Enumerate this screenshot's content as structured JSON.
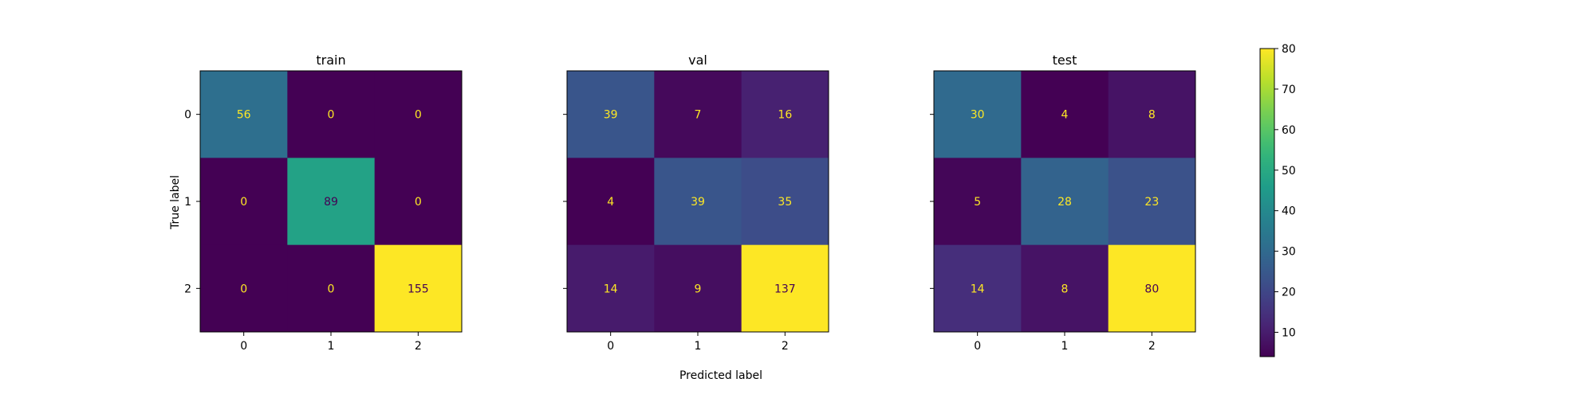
{
  "figure": {
    "xlabel": "Predicted label",
    "ylabel": "True label"
  },
  "colorbar": {
    "min": 4,
    "max": 80,
    "ticks": [
      10,
      20,
      30,
      40,
      50,
      60,
      70,
      80
    ]
  },
  "chart_data": [
    {
      "type": "heatmap",
      "title": "train",
      "x_tick_labels": [
        "0",
        "1",
        "2"
      ],
      "y_tick_labels": [
        "0",
        "1",
        "2"
      ],
      "values": [
        [
          56,
          0,
          0
        ],
        [
          0,
          89,
          0
        ],
        [
          0,
          0,
          155
        ]
      ]
    },
    {
      "type": "heatmap",
      "title": "val",
      "x_tick_labels": [
        "0",
        "1",
        "2"
      ],
      "y_tick_labels": [
        "0",
        "1",
        "2"
      ],
      "values": [
        [
          39,
          7,
          16
        ],
        [
          4,
          39,
          35
        ],
        [
          14,
          9,
          137
        ]
      ]
    },
    {
      "type": "heatmap",
      "title": "test",
      "x_tick_labels": [
        "0",
        "1",
        "2"
      ],
      "y_tick_labels": [
        "0",
        "1",
        "2"
      ],
      "values": [
        [
          30,
          4,
          8
        ],
        [
          5,
          28,
          23
        ],
        [
          14,
          8,
          80
        ]
      ]
    }
  ]
}
